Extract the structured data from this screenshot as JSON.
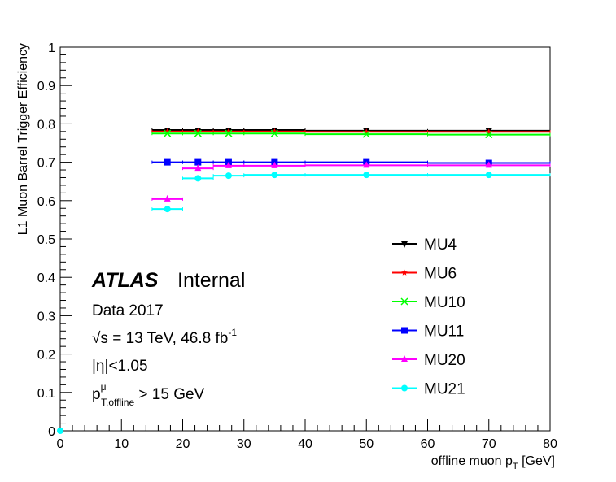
{
  "chart_data": {
    "type": "scatter",
    "xlabel_main": "offline muon p",
    "xlabel_sub": "T",
    "xlabel_unit": " [GeV]",
    "ylabel": "L1 Muon Barrel Trigger Efficiency",
    "xlim": [
      0,
      80
    ],
    "ylim": [
      0,
      1
    ],
    "x_ticks": [
      "0",
      "10",
      "20",
      "30",
      "40",
      "50",
      "60",
      "70",
      "80"
    ],
    "y_ticks": [
      "0",
      "0.1",
      "0.2",
      "0.3",
      "0.4",
      "0.5",
      "0.6",
      "0.7",
      "0.8",
      "0.9",
      "1"
    ],
    "grid": false,
    "legend_position": "bottom-right",
    "bins": [
      [
        15,
        20
      ],
      [
        20,
        25
      ],
      [
        25,
        30
      ],
      [
        30,
        40
      ],
      [
        40,
        60
      ],
      [
        60,
        80
      ]
    ],
    "series": [
      {
        "name": "MU4",
        "color": "#000000",
        "marker": "triangle-down",
        "bins": [
          [
            15,
            20
          ],
          [
            20,
            25
          ],
          [
            25,
            30
          ],
          [
            30,
            40
          ],
          [
            40,
            60
          ],
          [
            60,
            80
          ]
        ],
        "values": [
          0.784,
          0.784,
          0.784,
          0.784,
          0.782,
          0.782
        ]
      },
      {
        "name": "MU6",
        "color": "#ff0000",
        "marker": "star",
        "bins": [
          [
            15,
            20
          ],
          [
            20,
            25
          ],
          [
            25,
            30
          ],
          [
            30,
            40
          ],
          [
            40,
            60
          ],
          [
            60,
            80
          ]
        ],
        "values": [
          0.78,
          0.78,
          0.78,
          0.78,
          0.779,
          0.779
        ]
      },
      {
        "name": "MU10",
        "color": "#00ff00",
        "marker": "x-star",
        "bins": [
          [
            15,
            20
          ],
          [
            20,
            25
          ],
          [
            25,
            30
          ],
          [
            30,
            40
          ],
          [
            40,
            60
          ],
          [
            60,
            80
          ]
        ],
        "values": [
          0.775,
          0.775,
          0.775,
          0.775,
          0.773,
          0.772
        ]
      },
      {
        "name": "MU11",
        "color": "#0000ff",
        "marker": "square",
        "bins": [
          [
            15,
            20
          ],
          [
            20,
            25
          ],
          [
            25,
            30
          ],
          [
            30,
            40
          ],
          [
            40,
            60
          ],
          [
            60,
            80
          ]
        ],
        "values": [
          0.7,
          0.7,
          0.7,
          0.7,
          0.7,
          0.698
        ]
      },
      {
        "name": "MU20",
        "color": "#ff00ff",
        "marker": "triangle-up",
        "bins": [
          [
            15,
            20
          ],
          [
            20,
            25
          ],
          [
            25,
            30
          ],
          [
            30,
            40
          ],
          [
            40,
            60
          ],
          [
            60,
            80
          ]
        ],
        "values": [
          0.604,
          0.684,
          0.691,
          0.691,
          0.692,
          0.692
        ]
      },
      {
        "name": "MU21",
        "color": "#00ffff",
        "marker": "circle",
        "bins": [
          [
            15,
            20
          ],
          [
            20,
            25
          ],
          [
            25,
            30
          ],
          [
            30,
            40
          ],
          [
            40,
            60
          ],
          [
            60,
            80
          ]
        ],
        "values": [
          0.578,
          0.658,
          0.665,
          0.667,
          0.667,
          0.667
        ]
      }
    ],
    "extra_points": [
      {
        "series": "MU21",
        "x": 0,
        "y": 0
      }
    ],
    "annotations": {
      "atlas": "ATLAS",
      "status": "Internal",
      "dataset": "Data 2017",
      "sqrt_prefix": "√s",
      "energy_text": " = 13 TeV, 46.8 fb",
      "lumi_sup": "-1",
      "eta_cut": "|η|<1.05",
      "pt_main": "p",
      "pt_sup": "μ",
      "pt_sub": "T,offline",
      "pt_cut": " > 15 GeV"
    }
  }
}
